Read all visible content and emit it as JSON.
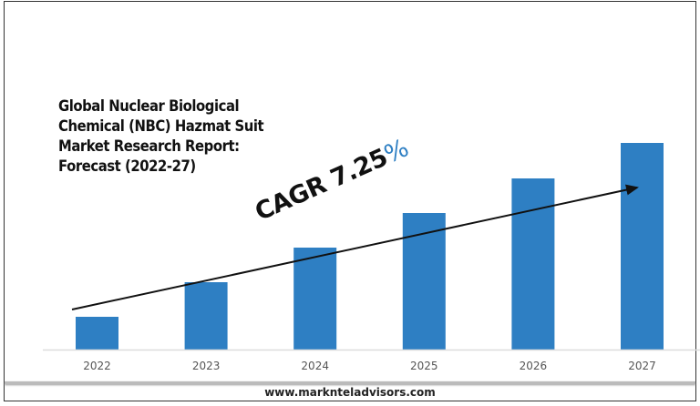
{
  "chart_data": {
    "type": "bar",
    "title": "Global Nuclear Biological Chemical (NBC) Hazmat Suit Market Research Report: Forecast (2022-27)",
    "title_lines": [
      "Global Nuclear Biological",
      "Chemical (NBC) Hazmat Suit",
      "Market Research Report:",
      "Forecast (2022-27)"
    ],
    "categories": [
      "2022",
      "2023",
      "2024",
      "2025",
      "2026",
      "2027"
    ],
    "values": [
      36,
      74,
      112,
      150,
      188,
      227
    ],
    "value_note": "relative bar heights; no y-axis printed",
    "ylim": [
      0,
      230
    ],
    "xlabel": "",
    "ylabel": "",
    "grid": false,
    "bar_color": "#2e7fc3",
    "annotation": {
      "text": "CAGR 7.25",
      "suffix": "%",
      "suffix_color": "#2e7fc3"
    }
  },
  "footer": {
    "website": "www.marknteladvisors.com"
  }
}
